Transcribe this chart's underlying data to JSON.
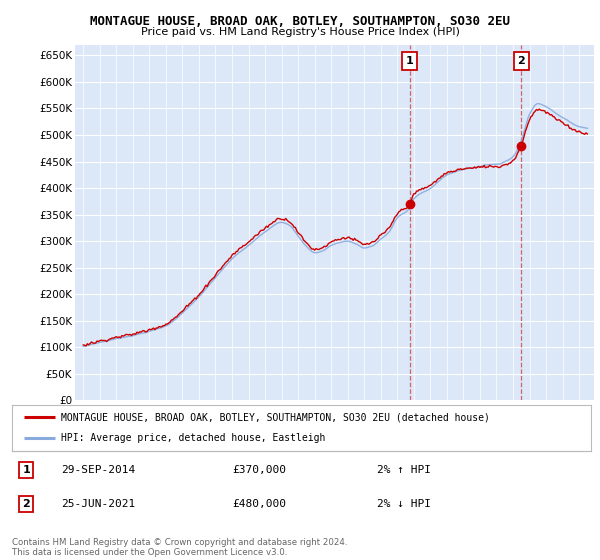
{
  "title": "MONTAGUE HOUSE, BROAD OAK, BOTLEY, SOUTHAMPTON, SO30 2EU",
  "subtitle": "Price paid vs. HM Land Registry's House Price Index (HPI)",
  "ylim": [
    0,
    670000
  ],
  "yticks": [
    0,
    50000,
    100000,
    150000,
    200000,
    250000,
    300000,
    350000,
    400000,
    450000,
    500000,
    550000,
    600000,
    650000
  ],
  "ytick_labels": [
    "£0",
    "£50K",
    "£100K",
    "£150K",
    "£200K",
    "£250K",
    "£300K",
    "£350K",
    "£400K",
    "£450K",
    "£500K",
    "£550K",
    "£600K",
    "£650K"
  ],
  "sale1_date_x": 2014.75,
  "sale1_price": 370000,
  "sale2_date_x": 2021.5,
  "sale2_price": 480000,
  "vline1_x": 2014.75,
  "vline2_x": 2021.5,
  "line_color_red": "#cc0000",
  "line_color_blue": "#88aadd",
  "legend_line1_label": "MONTAGUE HOUSE, BROAD OAK, BOTLEY, SOUTHAMPTON, SO30 2EU (detached house)",
  "legend_line2_label": "HPI: Average price, detached house, Eastleigh",
  "note1_label": "1",
  "note1_date": "29-SEP-2014",
  "note1_price": "£370,000",
  "note1_hpi": "2% ↑ HPI",
  "note2_label": "2",
  "note2_date": "25-JUN-2021",
  "note2_price": "£480,000",
  "note2_hpi": "2% ↓ HPI",
  "copyright": "Contains HM Land Registry data © Crown copyright and database right 2024.\nThis data is licensed under the Open Government Licence v3.0.",
  "background_color": "#ffffff",
  "grid_color": "#cccccc",
  "plot_bg_color": "#dce8f8",
  "x_start": 1995,
  "x_end": 2025,
  "xtick_start": 1995,
  "xtick_end": 2026
}
